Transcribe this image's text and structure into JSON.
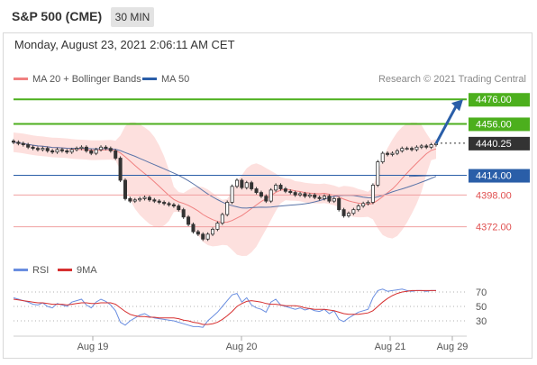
{
  "header": {
    "title": "S&P 500 (CME)",
    "timeframe": "30 MIN",
    "datetime": "Monday, August 23, 2021 2:06:11 AM CET"
  },
  "legend": {
    "ma20": "MA 20 + Bollinger Bands",
    "ma50": "MA 50",
    "research": "Research © 2021 Trading Central",
    "rsi": "RSI",
    "rsi_ma": "9MA"
  },
  "colors": {
    "green": "#4caf1d",
    "blue": "#2a5ea8",
    "red": "#e05050",
    "dark": "#333333",
    "bollinger": "#fde0de",
    "ma20": "#f08080",
    "ma50": "#5a74a8",
    "rsi": "#6a8ee0",
    "rsi_ma": "#d63030"
  },
  "chart_data": [
    {
      "type": "candlestick",
      "x_ticks": [
        "Aug 19",
        "Aug 20",
        "Aug 21",
        "Aug 29"
      ],
      "ylim": [
        4360,
        4485
      ],
      "levels": [
        {
          "value": 4476.0,
          "label": "4476.00",
          "style": "resistance-line"
        },
        {
          "value": 4456.0,
          "label": "4456.00",
          "style": "resistance-line"
        },
        {
          "value": 4440.25,
          "label": "4440.25",
          "style": "last-price"
        },
        {
          "value": 4414.0,
          "label": "4414.00",
          "style": "pivot-line"
        },
        {
          "value": 4398.0,
          "label": "4398.00",
          "style": "support-line"
        },
        {
          "value": 4372.0,
          "label": "4372.00",
          "style": "support-line"
        }
      ],
      "close": [
        4441,
        4440,
        4439,
        4437,
        4436,
        4435,
        4436,
        4434,
        4433,
        4435,
        4434,
        4433,
        4435,
        4436,
        4437,
        4434,
        4432,
        4435,
        4437,
        4436,
        4434,
        4428,
        4410,
        4395,
        4393,
        4394,
        4395,
        4396,
        4394,
        4393,
        4392,
        4391,
        4390,
        4389,
        4386,
        4380,
        4374,
        4368,
        4366,
        4362,
        4366,
        4370,
        4375,
        4382,
        4392,
        4405,
        4410,
        4404,
        4408,
        4403,
        4400,
        4397,
        4393,
        4402,
        4406,
        4403,
        4401,
        4400,
        4398,
        4399,
        4397,
        4398,
        4396,
        4395,
        4397,
        4393,
        4395,
        4386,
        4381,
        4383,
        4386,
        4389,
        4391,
        4392,
        4406,
        4425,
        4432,
        4431,
        4432,
        4434,
        4436,
        4436,
        4435,
        4437,
        4438,
        4437,
        4439,
        4440
      ]
    },
    {
      "type": "line",
      "title": "RSI",
      "ylim": [
        10,
        85
      ],
      "y_ticks": [
        70,
        50,
        30
      ],
      "series": [
        {
          "name": "RSI",
          "values": [
            62,
            60,
            58,
            56,
            53,
            52,
            55,
            50,
            48,
            54,
            52,
            50,
            56,
            58,
            60,
            52,
            48,
            56,
            60,
            57,
            52,
            44,
            28,
            24,
            30,
            34,
            38,
            40,
            36,
            34,
            33,
            32,
            31,
            30,
            28,
            26,
            24,
            22,
            22,
            21,
            30,
            36,
            42,
            50,
            58,
            66,
            68,
            56,
            62,
            52,
            48,
            46,
            42,
            56,
            60,
            52,
            50,
            48,
            46,
            48,
            45,
            47,
            44,
            43,
            46,
            40,
            44,
            32,
            29,
            34,
            38,
            42,
            44,
            46,
            62,
            72,
            74,
            71,
            72,
            73,
            74,
            72,
            71,
            72,
            72,
            71,
            72,
            72
          ]
        },
        {
          "name": "9MA",
          "values": [
            60,
            59,
            58,
            57,
            56,
            55,
            55,
            54,
            53,
            53,
            53,
            52,
            53,
            54,
            55,
            55,
            54,
            54,
            55,
            55,
            55,
            53,
            48,
            43,
            39,
            37,
            36,
            36,
            35,
            35,
            34,
            34,
            34,
            34,
            33,
            31,
            30,
            28,
            27,
            25,
            25,
            26,
            28,
            32,
            37,
            43,
            50,
            54,
            57,
            58,
            57,
            56,
            54,
            53,
            53,
            52,
            51,
            51,
            51,
            50,
            48,
            47,
            46,
            46,
            46,
            45,
            44,
            42,
            40,
            39,
            39,
            39,
            40,
            41,
            44,
            50,
            56,
            61,
            65,
            68,
            70,
            71,
            72,
            72,
            72,
            72,
            72,
            72
          ]
        }
      ]
    }
  ]
}
